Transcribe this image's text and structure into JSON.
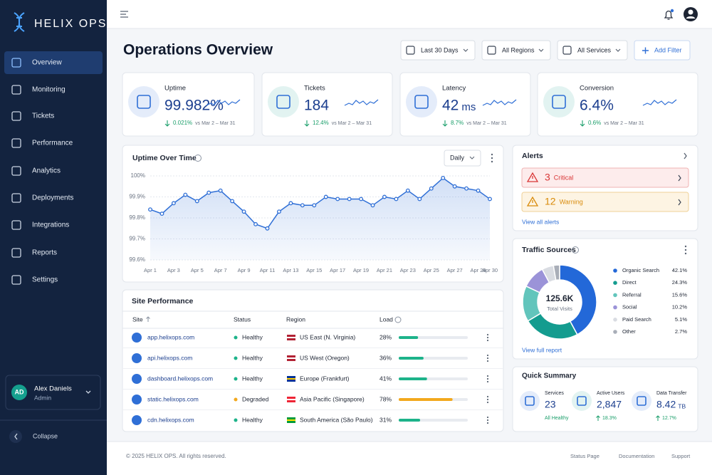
{
  "brand": "HELIX OPS",
  "nav": [
    "Overview",
    "Monitoring",
    "Tickets",
    "Performance",
    "Analytics",
    "Deployments",
    "Integrations",
    "Reports",
    "Settings"
  ],
  "user": {
    "initials": "AD",
    "name": "Alex Daniels",
    "role": "Admin"
  },
  "collapse": "Collapse",
  "header": {
    "title": "Operations Overview",
    "filters": [
      "Last 30 Days",
      "All Regions",
      "All Services"
    ],
    "add_filter": "Add Filter"
  },
  "kpis": [
    {
      "label": "Uptime",
      "value": "99.982%",
      "delta": "0.021%",
      "period": "vs Mar 2 – Mar 31"
    },
    {
      "label": "Tickets",
      "value": "184",
      "delta": "12.4%",
      "period": "vs Mar 2 – Mar 31"
    },
    {
      "label": "Latency",
      "value": "42",
      "unit": "ms",
      "delta": "8.7%",
      "period": "vs Mar 2 – Mar 31"
    },
    {
      "label": "Conversion",
      "value": "6.4%",
      "delta": "0.6%",
      "period": "vs Mar 2 – Mar 31"
    }
  ],
  "chart_data": [
    {
      "type": "line",
      "title": "Uptime Over Time",
      "control": "Daily",
      "categories": [
        "Apr 1",
        null,
        "Apr 3",
        null,
        "Apr 5",
        null,
        "Apr 7",
        null,
        "Apr 9",
        null,
        "Apr 11",
        null,
        "Apr 13",
        null,
        "Apr 15",
        null,
        "Apr 17",
        null,
        "Apr 19",
        null,
        "Apr 21",
        null,
        "Apr 23",
        null,
        "Apr 25",
        null,
        "Apr 27",
        null,
        "Apr 29",
        "Apr 30"
      ],
      "values": [
        99.84,
        99.82,
        99.87,
        99.91,
        99.88,
        99.92,
        99.93,
        99.88,
        99.83,
        99.77,
        99.75,
        99.83,
        99.87,
        99.86,
        99.86,
        99.9,
        99.89,
        99.89,
        99.89,
        99.86,
        99.9,
        99.89,
        99.93,
        99.89,
        99.94,
        99.99,
        99.95,
        99.94,
        99.93,
        99.89
      ],
      "color": "#2f6fd6",
      "ylim": [
        99.6,
        100
      ],
      "yticks": [
        {
          "value": 99.6,
          "label": "99.6%"
        },
        {
          "value": 99.7,
          "label": "99.7%"
        },
        {
          "value": 99.8,
          "label": "99.8%"
        },
        {
          "value": 99.9,
          "label": "99.9%"
        },
        {
          "value": 100,
          "label": "100%"
        }
      ],
      "grid": true
    },
    {
      "type": "donut",
      "title": "Traffic Sources",
      "center_value": "125.6K",
      "center_label": "Total Visits",
      "categories": [
        "Organic Search",
        "Direct",
        "Referral",
        "Social",
        "Paid Search",
        "Other"
      ],
      "values": [
        42.1,
        24.3,
        15.6,
        10.2,
        5.1,
        2.7
      ],
      "value_labels": [
        "42.1%",
        "24.3%",
        "15.6%",
        "10.2%",
        "5.1%",
        "2.7%"
      ],
      "colors": [
        "#2368d8",
        "#149c8f",
        "#62c5bc",
        "#9b93d8",
        "#d9dce2",
        "#a9aeb8"
      ],
      "link": "View full report"
    }
  ],
  "alerts": {
    "title": "Alerts",
    "items": [
      {
        "count": "3",
        "label": "Critical"
      },
      {
        "count": "12",
        "label": "Warning"
      }
    ],
    "link": "View all alerts"
  },
  "site_performance": {
    "title": "Site Performance",
    "columns": [
      "Site",
      "Status",
      "Region",
      "Load"
    ],
    "xlim": [
      0,
      100
    ],
    "rows": [
      {
        "site": "app.helixops.com",
        "status": "Healthy",
        "region": "US East (N. Virginia)",
        "load": 28,
        "load_label": "28%",
        "color": "#1db38a"
      },
      {
        "site": "api.helixops.com",
        "status": "Healthy",
        "region": "US West (Oregon)",
        "load": 36,
        "load_label": "36%",
        "color": "#1db38a"
      },
      {
        "site": "dashboard.helixops.com",
        "status": "Healthy",
        "region": "Europe (Frankfurt)",
        "load": 41,
        "load_label": "41%",
        "color": "#1db38a"
      },
      {
        "site": "static.helixops.com",
        "status": "Degraded",
        "region": "Asia Pacific (Singapore)",
        "load": 78,
        "load_label": "78%",
        "color": "#f2a81d"
      },
      {
        "site": "cdn.helixops.com",
        "status": "Healthy",
        "region": "South America (São Paulo)",
        "load": 31,
        "load_label": "31%",
        "color": "#1db38a"
      }
    ]
  },
  "quick_summary": {
    "title": "Quick Summary",
    "items": [
      {
        "label": "Services",
        "value": "23",
        "note": "All Healthy"
      },
      {
        "label": "Active Users",
        "value": "2,847",
        "note": "18.3%"
      },
      {
        "label": "Data Transfer",
        "value": "8.42",
        "unit": "TB",
        "note": "12.7%"
      }
    ]
  },
  "footer": {
    "copyright": "© 2025 HELIX OPS. All rights reserved.",
    "links": [
      "Status Page",
      "Documentation",
      "Support"
    ]
  }
}
